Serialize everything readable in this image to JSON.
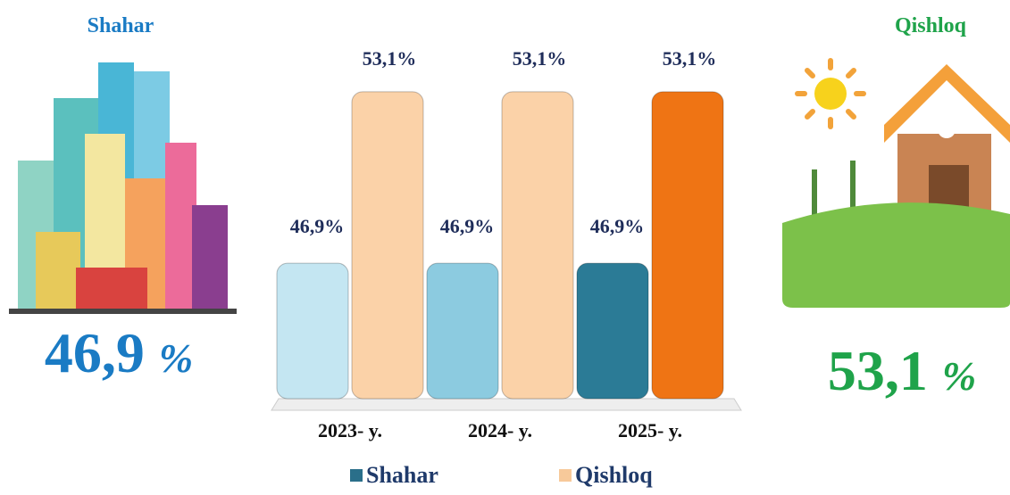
{
  "chart_data": {
    "type": "bar",
    "categories": [
      "2023- y.",
      "2024- y.",
      "2025- y."
    ],
    "series": [
      {
        "name": "Shahar",
        "color": "#2a6f8a",
        "colors": [
          "#c4e6f2",
          "#8ccbe0",
          "#2b7b96"
        ],
        "values": [
          46.9,
          46.9,
          46.9
        ],
        "value_labels": [
          "46,9%",
          "46,9%",
          "46,9%"
        ]
      },
      {
        "name": "Qishloq",
        "color": "#f7c99a",
        "colors": [
          "#fbd2a8",
          "#fbd2a8",
          "#ef7414"
        ],
        "values": [
          53.1,
          53.1,
          53.1
        ],
        "value_labels": [
          "53,1%",
          "53,1%",
          "53,1%"
        ]
      }
    ],
    "ylim": [
      42,
      54
    ]
  },
  "left_panel": {
    "title": "Shahar",
    "value_text": "46,9",
    "unit": "%"
  },
  "right_panel": {
    "title": "Qishloq",
    "value_text": "53,1",
    "unit": "%"
  }
}
